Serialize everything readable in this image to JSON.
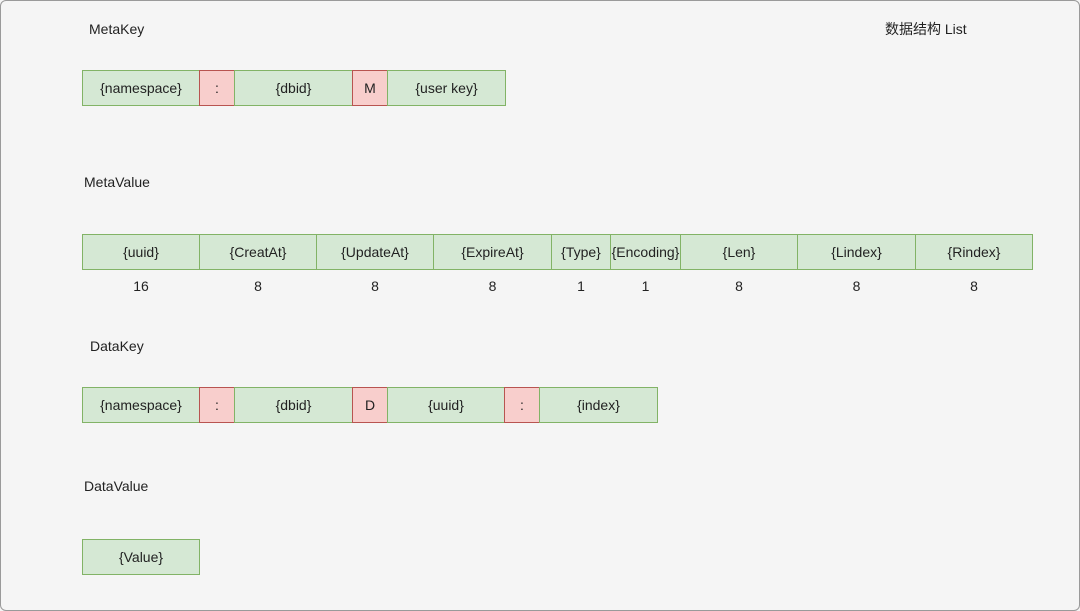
{
  "title_right": "数据结构 List",
  "meta_key": {
    "label": "MetaKey",
    "cells": [
      "{namespace}",
      ":",
      "{dbid}",
      "M",
      "{user key}"
    ]
  },
  "meta_value": {
    "label": "MetaValue",
    "cells": [
      "{uuid}",
      "{CreatAt}",
      "{UpdateAt}",
      "{ExpireAt}",
      "{Type}",
      "{Encoding}",
      "{Len}",
      "{Lindex}",
      "{Rindex}"
    ],
    "sizes": [
      "16",
      "8",
      "8",
      "8",
      "1",
      "1",
      "8",
      "8",
      "8"
    ]
  },
  "data_key": {
    "label": "DataKey",
    "cells": [
      "{namespace}",
      ":",
      "{dbid}",
      "D",
      "{uuid}",
      ":",
      "{index}"
    ]
  },
  "data_value": {
    "label": "DataValue",
    "cells": [
      "{Value}"
    ]
  },
  "colors": {
    "field_fill": "#d5e8d4",
    "field_stroke": "#82b366",
    "separator_fill": "#f8cecc",
    "separator_stroke": "#b85450"
  }
}
